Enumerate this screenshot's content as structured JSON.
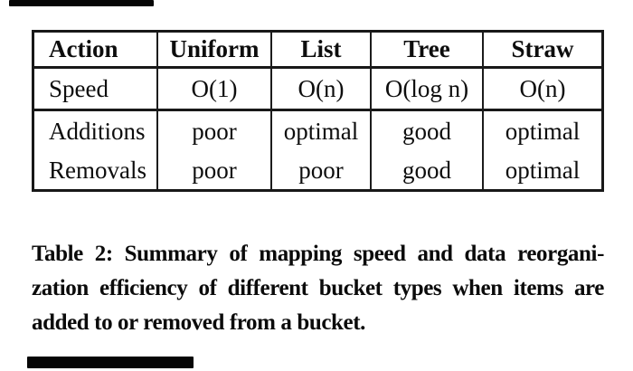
{
  "colors": {
    "background": "#ffffff",
    "text": "#0d0d0d",
    "table_border": "#181818",
    "artifact_bar": "#060606"
  },
  "artifacts": {
    "top_bar": "cropped-text-sliver",
    "bottom_bar": "cropped-text-sliver"
  },
  "table": {
    "headers": [
      "Action",
      "Uniform",
      "List",
      "Tree",
      "Straw"
    ],
    "rows": [
      [
        "Speed",
        "O(1)",
        "O(n)",
        "O(log n)",
        "O(n)"
      ],
      [
        "Additions",
        "poor",
        "optimal",
        "good",
        "optimal"
      ],
      [
        "Removals",
        "poor",
        "poor",
        "good",
        "optimal"
      ]
    ]
  },
  "caption": {
    "lines": [
      "Table 2: Summary of mapping speed and data reorgani-",
      "zation efficiency of different bucket types when items are",
      "added to or removed from a bucket."
    ]
  },
  "chart_data": {
    "type": "table",
    "title": "Table 2",
    "columns": [
      "Action",
      "Uniform",
      "List",
      "Tree",
      "Straw"
    ],
    "rows": [
      [
        "Speed",
        "O(1)",
        "O(n)",
        "O(log n)",
        "O(n)"
      ],
      [
        "Additions",
        "poor",
        "optimal",
        "good",
        "optimal"
      ],
      [
        "Removals",
        "poor",
        "poor",
        "good",
        "optimal"
      ]
    ]
  }
}
